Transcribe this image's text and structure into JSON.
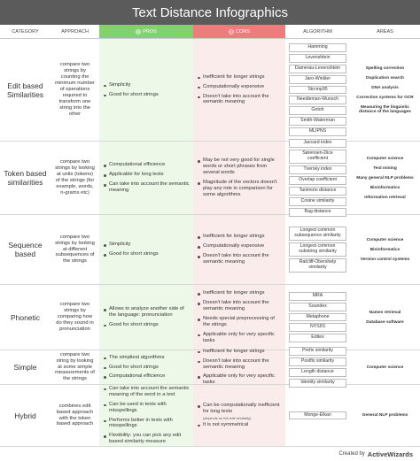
{
  "title": "Text Distance Infographics",
  "headers": [
    "CATEGORY",
    "APPROACH",
    "PROS",
    "CONS",
    "ALGORITHM",
    "AREAS"
  ],
  "rows": [
    {
      "category": "Edit based Similarities",
      "approach": "compare two strings by counting the minimum number of operations required to transform one string into the other",
      "pros": [
        "Simplicity",
        "Good for short strings"
      ],
      "cons": [
        "Inefficient for longer strings",
        "Computationally expensive",
        "Doesn't take into account the semantic meaning"
      ],
      "algorithms": [
        "Hamming",
        "Levenshtein",
        "Damerau-Levenshtein",
        "Jaro-Winkler",
        "Strcmp95",
        "Needleman-Wunsch",
        "Gotoh",
        "Smith-Waterman",
        "MLIPNS"
      ],
      "areas": [
        "Spelling correction",
        "Duplication search",
        "DNA analysis",
        "Correction systems for OCR",
        "Measuring the linguistic distance of the languages"
      ]
    },
    {
      "category": "Token based similarities",
      "approach": "compare two strings by looking at units (tokens) of the strings (for example, words, n-grams etc)",
      "pros": [
        "Computational efficience",
        "Applicable for long texts",
        "Can take into account the semantic meaning"
      ],
      "cons": [
        "May be not very good for single words or short phrases from several words",
        "Magnitude of the vectors doesn't play any role in comparison for some algorithms"
      ],
      "algorithms": [
        "Jaccard index",
        "Sørensen-Dice coefficient",
        "Tversky index",
        "Overlap coefficient",
        "Tanimoto distance",
        "Cosine similarity",
        "Bag distance"
      ],
      "areas": [
        "Computer science",
        "Text mining",
        "Many general NLP problems",
        "Bioinformatics",
        "Information retrieval"
      ]
    },
    {
      "category": "Sequence based",
      "approach": "compare two strings by looking at different subsequences of the strings",
      "pros": [
        "Simplicity",
        "Good for short strings"
      ],
      "cons": [
        "Inefficient for longer strings",
        "Computationally expensive",
        "Doesn't take into account the semantic meaning"
      ],
      "algorithms": [
        "Longest common subsequence similarity",
        "Longest common substring similarity",
        "Ratcliff-Obershelp similarity"
      ],
      "areas": [
        "Computer science",
        "Bioinformatics",
        "Version control systems"
      ]
    },
    {
      "category": "Phonetic",
      "approach": "compare two strings by comparing how do they sound in pronunciation",
      "pros": [
        "Allows to analyze another side of the language: pronunciation",
        "Good for short strings"
      ],
      "cons": [
        "Inefficient for longer strings",
        "Doesn't take into account the semantic meaning",
        "Needs special preprocessing of the strings",
        "Applicable only for very specific tasks"
      ],
      "algorithms": [
        "MRA",
        "Soundex",
        "Metaphone",
        "NYSIIS",
        "Editex"
      ],
      "areas": [
        "Names retrieval",
        "Database software"
      ]
    },
    {
      "category": "Simple",
      "approach": "compare two string by looking at some simple measurements of the strings",
      "pros": [
        "The simpliest algorithms",
        "Good for short strings",
        "Computational efficience"
      ],
      "cons": [
        "Inefficient for longer strings",
        "Doesn't take into account the semantic meaning",
        "Applicable only for very specific tasks"
      ],
      "algorithms": [
        "Prefix similarity",
        "Postfix similarity",
        "Length distance",
        "Identity similarity"
      ],
      "areas": [
        "Computer science"
      ]
    },
    {
      "category": "Hybrid",
      "approach": "combines edit based approach with the token based approach",
      "pros": [
        "Can take into account the semantic meaning of the word in a text",
        "Can be used in texts with misspellings",
        "Performs better in texts with misspellings",
        "Flexibility: you can pick any edit based similarity measure"
      ],
      "cons": [
        "Can be computationally inefficient for long texts",
        "It is not symmetrical"
      ],
      "cons_note": "(depends on the edit similarity)",
      "algorithms": [
        "Monge-Elkan"
      ],
      "areas": [
        "General NLP problems"
      ]
    }
  ],
  "footer": {
    "prefix": "Created by",
    "brand": "ActiveWizards"
  }
}
